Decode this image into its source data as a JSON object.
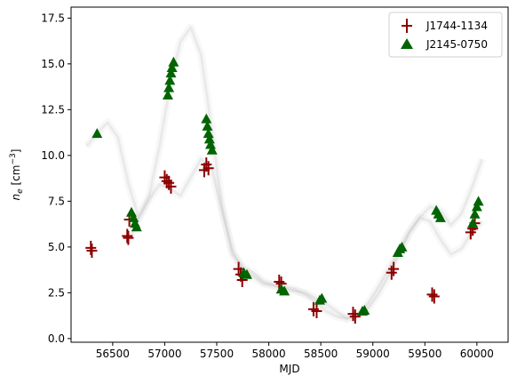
{
  "chart_data": {
    "type": "scatter",
    "title": "",
    "xlabel": "MJD",
    "ylabel": "n_e [cm^-3]",
    "xlim": [
      56100,
      60300
    ],
    "ylim": [
      -0.2,
      18.1
    ],
    "xticks": [
      56500,
      57000,
      57500,
      58000,
      58500,
      59000,
      59500,
      60000
    ],
    "yticks": [
      0.0,
      2.5,
      5.0,
      7.5,
      10.0,
      12.5,
      15.0,
      17.5
    ],
    "ytick_labels": [
      "0.0",
      "2.5",
      "5.0",
      "7.5",
      "10.0",
      "12.5",
      "15.0",
      "17.5"
    ],
    "grid": false,
    "legend_position": "top-right",
    "background_model": {
      "color": "#9a9a9a",
      "curves": [
        {
          "x": [
            56250,
            56350,
            56450,
            56550,
            56650,
            56750,
            56850,
            56950,
            57050,
            57150,
            57250,
            57350,
            57450,
            57550,
            57650,
            57750,
            57850,
            57950,
            58050,
            58150,
            58250,
            58350,
            58450,
            58550,
            58650,
            58750,
            58850,
            58950,
            59050,
            59150,
            59250,
            59350,
            59450,
            59550,
            59650,
            59750,
            59850,
            59950,
            60050
          ],
          "y": [
            10.5,
            11.2,
            11.8,
            11.0,
            8.5,
            6.6,
            7.8,
            10.5,
            13.8,
            16.2,
            17.0,
            15.5,
            11.5,
            7.2,
            4.6,
            3.9,
            3.6,
            3.1,
            2.9,
            2.7,
            2.6,
            2.5,
            2.2,
            1.9,
            1.5,
            1.1,
            1.3,
            1.9,
            2.8,
            3.8,
            4.8,
            5.8,
            6.6,
            7.2,
            7.0,
            6.2,
            6.8,
            8.2,
            9.8
          ]
        },
        {
          "x": [
            56650,
            56750,
            56850,
            56950,
            57050,
            57150,
            57250,
            57350,
            57450,
            57550,
            57650,
            57750,
            57850,
            57950,
            58050,
            58150,
            58250,
            58350,
            58450,
            58550,
            58650,
            58750,
            58850,
            58950,
            59050,
            59150,
            59250,
            59350,
            59450,
            59550,
            59650,
            59750,
            59850,
            59950,
            60050
          ],
          "y": [
            5.2,
            6.6,
            7.6,
            8.4,
            8.2,
            7.8,
            8.8,
            9.8,
            9.3,
            7.0,
            4.8,
            3.8,
            3.4,
            3.0,
            2.9,
            2.8,
            2.7,
            2.4,
            2.0,
            1.5,
            1.2,
            1.1,
            1.2,
            1.6,
            2.4,
            3.4,
            4.6,
            5.8,
            6.6,
            6.4,
            5.4,
            4.6,
            4.9,
            5.8,
            6.4
          ]
        }
      ]
    },
    "series": [
      {
        "name": "J1744-1134",
        "marker": "plus",
        "color": "#8b0000",
        "points": [
          [
            56290,
            4.95
          ],
          [
            56300,
            4.8
          ],
          [
            56640,
            5.6
          ],
          [
            56650,
            5.5
          ],
          [
            56660,
            6.5
          ],
          [
            57000,
            8.8
          ],
          [
            57020,
            8.6
          ],
          [
            57040,
            8.5
          ],
          [
            57060,
            8.3
          ],
          [
            57380,
            9.2
          ],
          [
            57400,
            9.5
          ],
          [
            57420,
            9.3
          ],
          [
            57710,
            3.8
          ],
          [
            57730,
            3.5
          ],
          [
            57745,
            3.2
          ],
          [
            58100,
            3.1
          ],
          [
            58120,
            3.0
          ],
          [
            58430,
            1.6
          ],
          [
            58460,
            1.5
          ],
          [
            58810,
            1.35
          ],
          [
            58830,
            1.2
          ],
          [
            59180,
            3.6
          ],
          [
            59200,
            3.8
          ],
          [
            59570,
            2.4
          ],
          [
            59590,
            2.3
          ],
          [
            59940,
            5.8
          ],
          [
            59960,
            6.0
          ],
          [
            59980,
            6.3
          ]
        ]
      },
      {
        "name": "J2145-0750",
        "marker": "triangle",
        "color": "#006400",
        "points": [
          [
            56350,
            11.2
          ],
          [
            56680,
            6.9
          ],
          [
            56700,
            6.6
          ],
          [
            56715,
            6.3
          ],
          [
            56730,
            6.1
          ],
          [
            57030,
            13.3
          ],
          [
            57040,
            13.7
          ],
          [
            57050,
            14.1
          ],
          [
            57060,
            14.5
          ],
          [
            57070,
            14.8
          ],
          [
            57085,
            15.1
          ],
          [
            57400,
            12.0
          ],
          [
            57410,
            11.6
          ],
          [
            57420,
            11.2
          ],
          [
            57430,
            10.9
          ],
          [
            57440,
            10.6
          ],
          [
            57455,
            10.3
          ],
          [
            57760,
            3.6
          ],
          [
            57790,
            3.5
          ],
          [
            58120,
            2.7
          ],
          [
            58150,
            2.6
          ],
          [
            58490,
            2.1
          ],
          [
            58510,
            2.2
          ],
          [
            58900,
            1.5
          ],
          [
            58920,
            1.55
          ],
          [
            59240,
            4.7
          ],
          [
            59260,
            4.9
          ],
          [
            59280,
            5.0
          ],
          [
            59610,
            7.0
          ],
          [
            59630,
            6.8
          ],
          [
            59650,
            6.6
          ],
          [
            59960,
            6.3
          ],
          [
            59980,
            6.8
          ],
          [
            60000,
            7.2
          ],
          [
            60015,
            7.5
          ]
        ]
      }
    ]
  }
}
